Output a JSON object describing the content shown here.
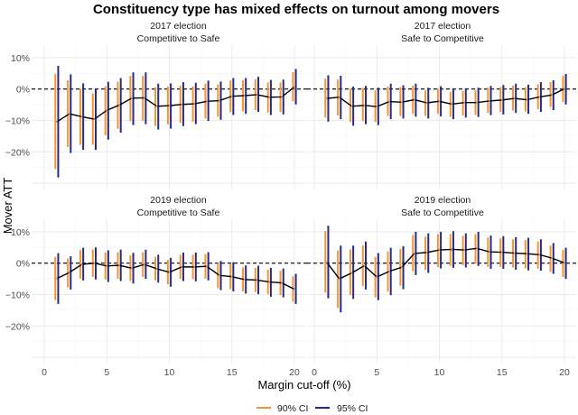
{
  "chart_data": {
    "type": "line",
    "title": "Constituency type has mixed effects on turnout among movers",
    "xlabel": "Margin cut-off (%)",
    "ylabel": "Mover ATT",
    "xlim": [
      -1,
      21
    ],
    "ylim": [
      -32,
      14
    ],
    "x_ticks": [
      "0",
      "5",
      "10",
      "15",
      "20"
    ],
    "y_ticks": [
      "10%",
      "0%",
      "−10%",
      "−20%"
    ],
    "y_tick_values": [
      10,
      0,
      -10,
      -20
    ],
    "x_tick_values": [
      0,
      5,
      10,
      15,
      20
    ],
    "grid": true,
    "reference_line": 0,
    "legend": {
      "position": "bottom",
      "items": [
        {
          "label": "90% CI",
          "color": "#F8962E"
        },
        {
          "label": "95% CI",
          "color": "#272A84"
        }
      ]
    },
    "line_color": "#000000",
    "x": [
      1,
      2,
      3,
      4,
      5,
      6,
      7,
      8,
      9,
      10,
      11,
      12,
      13,
      14,
      15,
      16,
      17,
      18,
      19,
      20
    ],
    "panels": [
      {
        "strip1": "2017 election",
        "strip2": "Competitive to Safe",
        "att": [
          -10.5,
          -7.9,
          -8.8,
          -9.6,
          -6.8,
          -5.1,
          -2.9,
          -2.8,
          -5.5,
          -5.3,
          -4.9,
          -4.7,
          -3.9,
          -3.7,
          -2.3,
          -2.1,
          -1.8,
          -2.6,
          -2.5,
          0.7
        ],
        "ci90": [
          [
            -25.5,
            4.8
          ],
          [
            -18.5,
            2.8
          ],
          [
            -17.8,
            0.1
          ],
          [
            -17.8,
            -1.4
          ],
          [
            -14.7,
            0.9
          ],
          [
            -12.7,
            2.3
          ],
          [
            -10.2,
            4.2
          ],
          [
            -10.2,
            4.2
          ],
          [
            -11.8,
            0.6
          ],
          [
            -11.3,
            0.8
          ],
          [
            -10.8,
            1.1
          ],
          [
            -10.4,
            0.9
          ],
          [
            -9.4,
            1.7
          ],
          [
            -8.9,
            1.5
          ],
          [
            -7.4,
            2.7
          ],
          [
            -7.1,
            2.8
          ],
          [
            -6.7,
            3.1
          ],
          [
            -7.5,
            2.1
          ],
          [
            -7.3,
            2.1
          ],
          [
            -3.9,
            5.4
          ]
        ],
        "ci95": [
          [
            -28.2,
            7.4
          ],
          [
            -20.4,
            4.7
          ],
          [
            -19.4,
            1.8
          ],
          [
            -19.4,
            0.1
          ],
          [
            -16.1,
            2.3
          ],
          [
            -13.9,
            3.5
          ],
          [
            -11.5,
            5.3
          ],
          [
            -11.2,
            5.3
          ],
          [
            -12.9,
            1.7
          ],
          [
            -12.6,
            1.8
          ],
          [
            -11.8,
            2.2
          ],
          [
            -11.2,
            2.0
          ],
          [
            -10.2,
            2.7
          ],
          [
            -9.8,
            2.4
          ],
          [
            -8.3,
            3.5
          ],
          [
            -7.9,
            3.5
          ],
          [
            -7.3,
            3.9
          ],
          [
            -8.3,
            2.9
          ],
          [
            -8.1,
            3.0
          ],
          [
            -4.9,
            6.4
          ]
        ]
      },
      {
        "strip1": "2017 election",
        "strip2": "Safe to Competitive",
        "att": [
          -3.0,
          -2.6,
          -5.5,
          -5.2,
          -5.6,
          -4.0,
          -4.2,
          -3.4,
          -4.4,
          -3.9,
          -4.8,
          -4.3,
          -4.3,
          -3.8,
          -3.5,
          -3.0,
          -3.4,
          -2.5,
          -1.9,
          0.1
        ],
        "ci90": [
          [
            -9.1,
            3.3
          ],
          [
            -8.4,
            3.0
          ],
          [
            -10.5,
            0.1
          ],
          [
            -10.2,
            0.4
          ],
          [
            -10.5,
            -0.4
          ],
          [
            -8.6,
            0.8
          ],
          [
            -8.6,
            0.6
          ],
          [
            -7.9,
            1.1
          ],
          [
            -8.6,
            -0.4
          ],
          [
            -7.9,
            0.1
          ],
          [
            -8.9,
            -0.9
          ],
          [
            -8.4,
            -0.6
          ],
          [
            -8.2,
            -0.4
          ],
          [
            -7.6,
            0.4
          ],
          [
            -7.3,
            0.6
          ],
          [
            -6.9,
            1.1
          ],
          [
            -7.2,
            0.6
          ],
          [
            -6.4,
            1.5
          ],
          [
            -5.7,
            2.2
          ],
          [
            -4.1,
            4.2
          ]
        ],
        "ci95": [
          [
            -10.4,
            4.4
          ],
          [
            -9.6,
            4.2
          ],
          [
            -11.7,
            0.8
          ],
          [
            -11.2,
            1.0
          ],
          [
            -11.5,
            0.4
          ],
          [
            -9.6,
            1.7
          ],
          [
            -9.4,
            1.2
          ],
          [
            -8.8,
            1.7
          ],
          [
            -9.4,
            0.4
          ],
          [
            -8.7,
            0.9
          ],
          [
            -9.6,
            -0.1
          ],
          [
            -9.1,
            0.2
          ],
          [
            -8.9,
            0.4
          ],
          [
            -8.3,
            1.0
          ],
          [
            -8.1,
            1.3
          ],
          [
            -7.6,
            1.7
          ],
          [
            -7.9,
            1.4
          ],
          [
            -7.3,
            2.2
          ],
          [
            -6.7,
            2.8
          ],
          [
            -4.9,
            4.8
          ]
        ]
      },
      {
        "strip1": "2019 election",
        "strip2": "Competitive to Safe",
        "att": [
          -4.9,
          -3.0,
          -0.4,
          0.0,
          -0.9,
          -0.7,
          -1.6,
          -0.4,
          -1.8,
          -2.9,
          -1.2,
          -1.2,
          -1.0,
          -3.9,
          -4.3,
          -5.2,
          -5.4,
          -6.0,
          -6.3,
          -8.3
        ],
        "ci90": [
          [
            -11.8,
            2.0
          ],
          [
            -7.7,
            1.5
          ],
          [
            -4.9,
            4.2
          ],
          [
            -4.4,
            4.4
          ],
          [
            -5.2,
            3.4
          ],
          [
            -5.0,
            3.5
          ],
          [
            -5.7,
            2.5
          ],
          [
            -4.4,
            3.5
          ],
          [
            -5.5,
            2.0
          ],
          [
            -6.7,
            1.1
          ],
          [
            -5.0,
            2.7
          ],
          [
            -5.1,
            2.7
          ],
          [
            -4.9,
            2.9
          ],
          [
            -8.0,
            0.0
          ],
          [
            -8.3,
            -0.3
          ],
          [
            -9.0,
            -1.4
          ],
          [
            -9.2,
            -1.5
          ],
          [
            -9.9,
            -2.1
          ],
          [
            -10.2,
            -2.4
          ],
          [
            -12.3,
            -4.2
          ]
        ],
        "ci95": [
          [
            -13.0,
            3.2
          ],
          [
            -8.4,
            2.2
          ],
          [
            -5.5,
            4.9
          ],
          [
            -5.2,
            5.0
          ],
          [
            -6.0,
            4.1
          ],
          [
            -5.7,
            4.3
          ],
          [
            -6.5,
            3.3
          ],
          [
            -5.0,
            4.3
          ],
          [
            -6.2,
            2.7
          ],
          [
            -7.5,
            1.7
          ],
          [
            -5.7,
            3.4
          ],
          [
            -5.8,
            3.4
          ],
          [
            -5.5,
            3.5
          ],
          [
            -8.6,
            0.7
          ],
          [
            -9.0,
            0.3
          ],
          [
            -9.7,
            -0.7
          ],
          [
            -9.9,
            -0.8
          ],
          [
            -10.7,
            -1.5
          ],
          [
            -10.9,
            -1.7
          ],
          [
            -13.0,
            -3.4
          ]
        ]
      },
      {
        "strip1": "2019 election",
        "strip2": "Safe to Competitive",
        "att": [
          0.3,
          -5.0,
          -3.1,
          -0.8,
          -4.4,
          -2.6,
          -1.3,
          3.1,
          3.4,
          4.2,
          4.4,
          4.2,
          4.7,
          3.6,
          3.5,
          3.2,
          3.0,
          2.7,
          1.6,
          0.1
        ],
        "ci90": [
          [
            -9.4,
            10.2
          ],
          [
            -14.3,
            4.0
          ],
          [
            -10.2,
            4.4
          ],
          [
            -7.3,
            5.6
          ],
          [
            -10.9,
            2.0
          ],
          [
            -9.1,
            3.7
          ],
          [
            -7.2,
            4.5
          ],
          [
            -2.6,
            8.9
          ],
          [
            -2.1,
            8.5
          ],
          [
            -1.2,
            9.2
          ],
          [
            -0.9,
            9.3
          ],
          [
            -0.7,
            8.7
          ],
          [
            -0.2,
            9.2
          ],
          [
            -1.2,
            8.1
          ],
          [
            -1.2,
            7.9
          ],
          [
            -1.4,
            7.6
          ],
          [
            -1.7,
            7.4
          ],
          [
            -1.7,
            6.9
          ],
          [
            -2.8,
            5.6
          ],
          [
            -4.4,
            4.2
          ]
        ],
        "ci95": [
          [
            -11.2,
            11.9
          ],
          [
            -15.7,
            5.6
          ],
          [
            -11.4,
            5.6
          ],
          [
            -8.4,
            6.9
          ],
          [
            -11.8,
            3.2
          ],
          [
            -10.2,
            4.9
          ],
          [
            -8.3,
            5.4
          ],
          [
            -3.8,
            10.0
          ],
          [
            -3.1,
            9.5
          ],
          [
            -1.7,
            10.0
          ],
          [
            -1.5,
            10.2
          ],
          [
            -1.4,
            9.5
          ],
          [
            -0.9,
            10.0
          ],
          [
            -1.8,
            8.8
          ],
          [
            -1.8,
            8.6
          ],
          [
            -2.1,
            8.3
          ],
          [
            -2.3,
            8.1
          ],
          [
            -2.4,
            7.6
          ],
          [
            -3.4,
            6.4
          ],
          [
            -5.0,
            4.9
          ]
        ]
      }
    ]
  }
}
